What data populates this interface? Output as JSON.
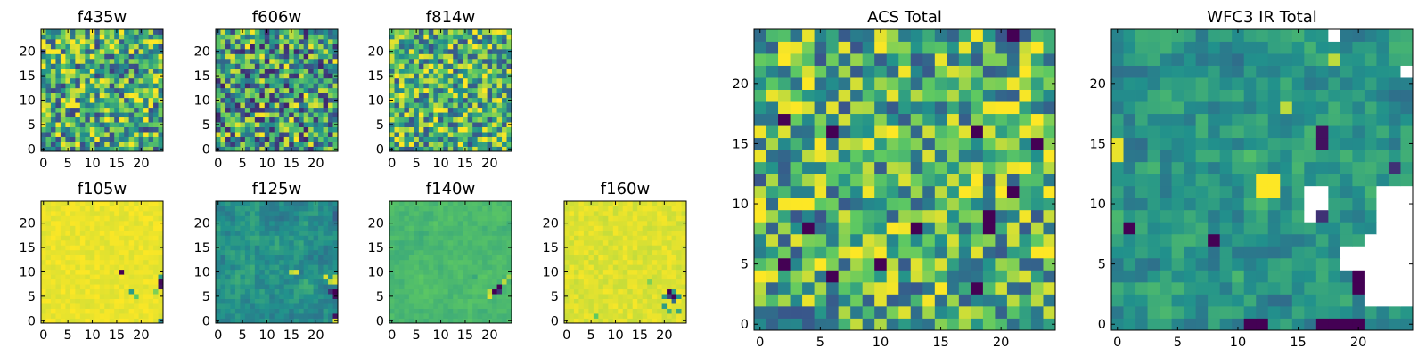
{
  "colormap": {
    "name": "viridis",
    "stops": [
      "#440154",
      "#3b528b",
      "#21918c",
      "#5ec962",
      "#fde725"
    ]
  },
  "missing_color": "#ffffff",
  "chart_data": [
    {
      "type": "heatmap",
      "title": "f435w",
      "size": 25,
      "pattern": "noise",
      "xticks": [
        "0",
        "5",
        "10",
        "15",
        "20"
      ],
      "yticks": [
        "0",
        "5",
        "10",
        "15",
        "20"
      ],
      "color_mean": 0.62,
      "color_spread": 0.42,
      "seed": 11,
      "features": []
    },
    {
      "type": "heatmap",
      "title": "f606w",
      "size": 25,
      "pattern": "noise",
      "xticks": [
        "0",
        "5",
        "10",
        "15",
        "20"
      ],
      "yticks": [
        "0",
        "5",
        "10",
        "15",
        "20"
      ],
      "color_mean": 0.55,
      "color_spread": 0.45,
      "seed": 23,
      "features": []
    },
    {
      "type": "heatmap",
      "title": "f814w",
      "size": 25,
      "pattern": "noise",
      "xticks": [
        "0",
        "5",
        "10",
        "15",
        "20"
      ],
      "yticks": [
        "0",
        "5",
        "10",
        "15",
        "20"
      ],
      "color_mean": 0.64,
      "color_spread": 0.4,
      "seed": 37,
      "features": []
    },
    {
      "type": "heatmap",
      "title": "f105w",
      "size": 25,
      "pattern": "flat",
      "xticks": [
        "0",
        "5",
        "10",
        "15",
        "20"
      ],
      "yticks": [
        "0",
        "5",
        "10",
        "15",
        "20"
      ],
      "color_mean": 0.97,
      "color_spread": 0.03,
      "seed": 41,
      "features": [
        {
          "x": 16,
          "y": 10,
          "v": 0.0
        },
        {
          "x": 24,
          "y": 8,
          "v": 0.02
        },
        {
          "x": 24,
          "y": 7,
          "v": 0.05
        },
        {
          "x": 24,
          "y": 9,
          "v": 0.55
        },
        {
          "x": 18,
          "y": 6,
          "v": 0.55
        },
        {
          "x": 19,
          "y": 5,
          "v": 0.75
        },
        {
          "x": 23,
          "y": 6,
          "v": 0.8
        },
        {
          "x": 24,
          "y": 0,
          "v": 0.45
        }
      ]
    },
    {
      "type": "heatmap",
      "title": "f125w",
      "size": 25,
      "pattern": "smooth",
      "xticks": [
        "0",
        "5",
        "10",
        "15",
        "20"
      ],
      "yticks": [
        "0",
        "5",
        "10",
        "15",
        "20"
      ],
      "color_mean": 0.5,
      "color_spread": 0.08,
      "seed": 53,
      "features": [
        {
          "x": 24,
          "y": 6,
          "v": 0.0
        },
        {
          "x": 24,
          "y": 5,
          "v": 0.05
        },
        {
          "x": 23,
          "y": 6,
          "v": 0.15
        },
        {
          "x": 24,
          "y": 8,
          "v": 0.95
        },
        {
          "x": 23,
          "y": 8,
          "v": 0.9
        },
        {
          "x": 24,
          "y": 9,
          "v": 0.9
        },
        {
          "x": 22,
          "y": 9,
          "v": 0.95
        },
        {
          "x": 16,
          "y": 10,
          "v": 0.95
        },
        {
          "x": 15,
          "y": 10,
          "v": 0.9
        },
        {
          "x": 24,
          "y": 1,
          "v": 0.05
        },
        {
          "x": 24,
          "y": 0,
          "v": 0.95
        },
        {
          "x": 24,
          "y": 22,
          "v": 0.3
        },
        {
          "x": 24,
          "y": 21,
          "v": 0.3
        }
      ]
    },
    {
      "type": "heatmap",
      "title": "f140w",
      "size": 25,
      "pattern": "smooth",
      "xticks": [
        "0",
        "5",
        "10",
        "15",
        "20"
      ],
      "yticks": [
        "0",
        "5",
        "10",
        "15",
        "20"
      ],
      "color_mean": 0.68,
      "color_spread": 0.04,
      "seed": 67,
      "features": [
        {
          "x": 22,
          "y": 7,
          "v": 0.0
        },
        {
          "x": 21,
          "y": 6,
          "v": 0.0
        },
        {
          "x": 22,
          "y": 6,
          "v": 0.15
        },
        {
          "x": 20,
          "y": 5,
          "v": 0.95
        },
        {
          "x": 20,
          "y": 6,
          "v": 0.9
        },
        {
          "x": 23,
          "y": 8,
          "v": 0.9
        },
        {
          "x": 24,
          "y": 9,
          "v": 0.85
        },
        {
          "x": 17,
          "y": 9,
          "v": 0.6
        }
      ]
    },
    {
      "type": "heatmap",
      "title": "f160w",
      "size": 25,
      "pattern": "flat",
      "xticks": [
        "0",
        "5",
        "10",
        "15",
        "20"
      ],
      "yticks": [
        "0",
        "5",
        "10",
        "15",
        "20"
      ],
      "color_mean": 0.95,
      "color_spread": 0.04,
      "seed": 79,
      "features": [
        {
          "x": 21,
          "y": 6,
          "v": 0.0
        },
        {
          "x": 22,
          "y": 5,
          "v": 0.02
        },
        {
          "x": 21,
          "y": 5,
          "v": 0.2
        },
        {
          "x": 22,
          "y": 4,
          "v": 0.35
        },
        {
          "x": 20,
          "y": 5,
          "v": 0.55
        },
        {
          "x": 23,
          "y": 5,
          "v": 0.5
        },
        {
          "x": 20,
          "y": 3,
          "v": 0.55
        },
        {
          "x": 22,
          "y": 6,
          "v": 0.55
        },
        {
          "x": 23,
          "y": 2,
          "v": 0.6
        },
        {
          "x": 21,
          "y": 2,
          "v": 0.65
        },
        {
          "x": 17,
          "y": 8,
          "v": 0.8
        },
        {
          "x": 6,
          "y": 1,
          "v": 0.75
        }
      ]
    },
    {
      "type": "heatmap",
      "title": "ACS Total",
      "size": 25,
      "pattern": "noise",
      "xticks": [
        "0",
        "5",
        "10",
        "15",
        "20"
      ],
      "yticks": [
        "0",
        "5",
        "10",
        "15",
        "20"
      ],
      "color_mean": 0.64,
      "color_spread": 0.38,
      "seed": 97,
      "features": [
        {
          "x": 2,
          "y": 17,
          "v": 0.0
        },
        {
          "x": 6,
          "y": 16,
          "v": 0.0
        },
        {
          "x": 18,
          "y": 16,
          "v": 0.0
        },
        {
          "x": 23,
          "y": 15,
          "v": 0.0
        },
        {
          "x": 4,
          "y": 8,
          "v": 0.0
        },
        {
          "x": 13,
          "y": 8,
          "v": 0.0
        },
        {
          "x": 19,
          "y": 9,
          "v": 0.0
        },
        {
          "x": 19,
          "y": 8,
          "v": 0.0
        },
        {
          "x": 2,
          "y": 5,
          "v": 0.0
        },
        {
          "x": 10,
          "y": 5,
          "v": 0.0
        },
        {
          "x": 6,
          "y": 4,
          "v": 0.0
        },
        {
          "x": 18,
          "y": 3,
          "v": 0.0
        },
        {
          "x": 21,
          "y": 11,
          "v": 0.0
        },
        {
          "x": 21,
          "y": 24,
          "v": 0.0
        },
        {
          "x": 1,
          "y": 19,
          "v": 0.97
        },
        {
          "x": 2,
          "y": 18,
          "v": 0.97
        },
        {
          "x": 20,
          "y": 18,
          "v": 1.0
        },
        {
          "x": 21,
          "y": 18,
          "v": 1.0
        }
      ]
    },
    {
      "type": "heatmap",
      "title": "WFC3 IR Total",
      "size": 25,
      "pattern": "smooth",
      "xticks": [
        "0",
        "5",
        "10",
        "15",
        "20"
      ],
      "yticks": [
        "0",
        "5",
        "10",
        "15",
        "20"
      ],
      "color_mean": 0.52,
      "color_spread": 0.12,
      "seed": 113,
      "features": [
        {
          "x": 0,
          "y": 15,
          "v": 0.97
        },
        {
          "x": 0,
          "y": 14,
          "v": 0.97
        },
        {
          "x": 12,
          "y": 12,
          "v": 1.0
        },
        {
          "x": 13,
          "y": 12,
          "v": 1.0
        },
        {
          "x": 12,
          "y": 11,
          "v": 1.0
        },
        {
          "x": 13,
          "y": 11,
          "v": 1.0
        },
        {
          "x": 1,
          "y": 8,
          "v": 0.0
        },
        {
          "x": 8,
          "y": 7,
          "v": 0.0
        },
        {
          "x": 17,
          "y": 0,
          "v": 0.0
        },
        {
          "x": 18,
          "y": 0,
          "v": 0.0
        },
        {
          "x": 19,
          "y": 0,
          "v": 0.0
        },
        {
          "x": 20,
          "y": 0,
          "v": 0.0
        },
        {
          "x": 11,
          "y": 0,
          "v": 0.0
        },
        {
          "x": 12,
          "y": 0,
          "v": 0.0
        },
        {
          "x": 20,
          "y": 4,
          "v": 0.0
        },
        {
          "x": 20,
          "y": 3,
          "v": 0.0
        },
        {
          "x": 17,
          "y": 15,
          "v": 0.05
        },
        {
          "x": 17,
          "y": 16,
          "v": 0.05
        },
        {
          "x": 23,
          "y": 13,
          "v": 0.15
        },
        {
          "x": 17,
          "y": 9,
          "v": 0.15
        },
        {
          "x": 14,
          "y": 18,
          "v": 0.9
        },
        {
          "x": 18,
          "y": 22,
          "v": 0.9
        },
        {
          "x": 18,
          "y": 24,
          "v": null
        },
        {
          "x": 24,
          "y": 21,
          "v": null
        },
        {
          "x": 16,
          "y": 11,
          "v": null
        },
        {
          "x": 17,
          "y": 11,
          "v": null
        },
        {
          "x": 17,
          "y": 10,
          "v": null
        },
        {
          "x": 16,
          "y": 10,
          "v": null
        },
        {
          "x": 16,
          "y": 9,
          "v": null
        },
        {
          "x": 22,
          "y": 11,
          "v": null
        },
        {
          "x": 23,
          "y": 11,
          "v": null
        },
        {
          "x": 24,
          "y": 11,
          "v": null
        },
        {
          "x": 22,
          "y": 10,
          "v": null
        },
        {
          "x": 23,
          "y": 10,
          "v": null
        },
        {
          "x": 24,
          "y": 10,
          "v": null
        },
        {
          "x": 22,
          "y": 9,
          "v": null
        },
        {
          "x": 23,
          "y": 9,
          "v": null
        },
        {
          "x": 24,
          "y": 9,
          "v": null
        },
        {
          "x": 22,
          "y": 8,
          "v": null
        },
        {
          "x": 23,
          "y": 8,
          "v": null
        },
        {
          "x": 24,
          "y": 8,
          "v": null
        },
        {
          "x": 21,
          "y": 7,
          "v": null
        },
        {
          "x": 22,
          "y": 7,
          "v": null
        },
        {
          "x": 23,
          "y": 7,
          "v": null
        },
        {
          "x": 24,
          "y": 7,
          "v": null
        },
        {
          "x": 19,
          "y": 6,
          "v": null
        },
        {
          "x": 20,
          "y": 6,
          "v": null
        },
        {
          "x": 21,
          "y": 6,
          "v": null
        },
        {
          "x": 22,
          "y": 6,
          "v": null
        },
        {
          "x": 23,
          "y": 6,
          "v": null
        },
        {
          "x": 24,
          "y": 6,
          "v": null
        },
        {
          "x": 19,
          "y": 5,
          "v": null
        },
        {
          "x": 20,
          "y": 5,
          "v": null
        },
        {
          "x": 21,
          "y": 5,
          "v": null
        },
        {
          "x": 22,
          "y": 5,
          "v": null
        },
        {
          "x": 23,
          "y": 5,
          "v": null
        },
        {
          "x": 24,
          "y": 5,
          "v": null
        },
        {
          "x": 21,
          "y": 4,
          "v": null
        },
        {
          "x": 22,
          "y": 4,
          "v": null
        },
        {
          "x": 23,
          "y": 4,
          "v": null
        },
        {
          "x": 24,
          "y": 4,
          "v": null
        },
        {
          "x": 21,
          "y": 3,
          "v": null
        },
        {
          "x": 22,
          "y": 3,
          "v": null
        },
        {
          "x": 23,
          "y": 3,
          "v": null
        },
        {
          "x": 24,
          "y": 3,
          "v": null
        },
        {
          "x": 21,
          "y": 2,
          "v": null
        },
        {
          "x": 22,
          "y": 2,
          "v": null
        },
        {
          "x": 23,
          "y": 2,
          "v": null
        },
        {
          "x": 24,
          "y": 2,
          "v": null
        }
      ]
    }
  ]
}
